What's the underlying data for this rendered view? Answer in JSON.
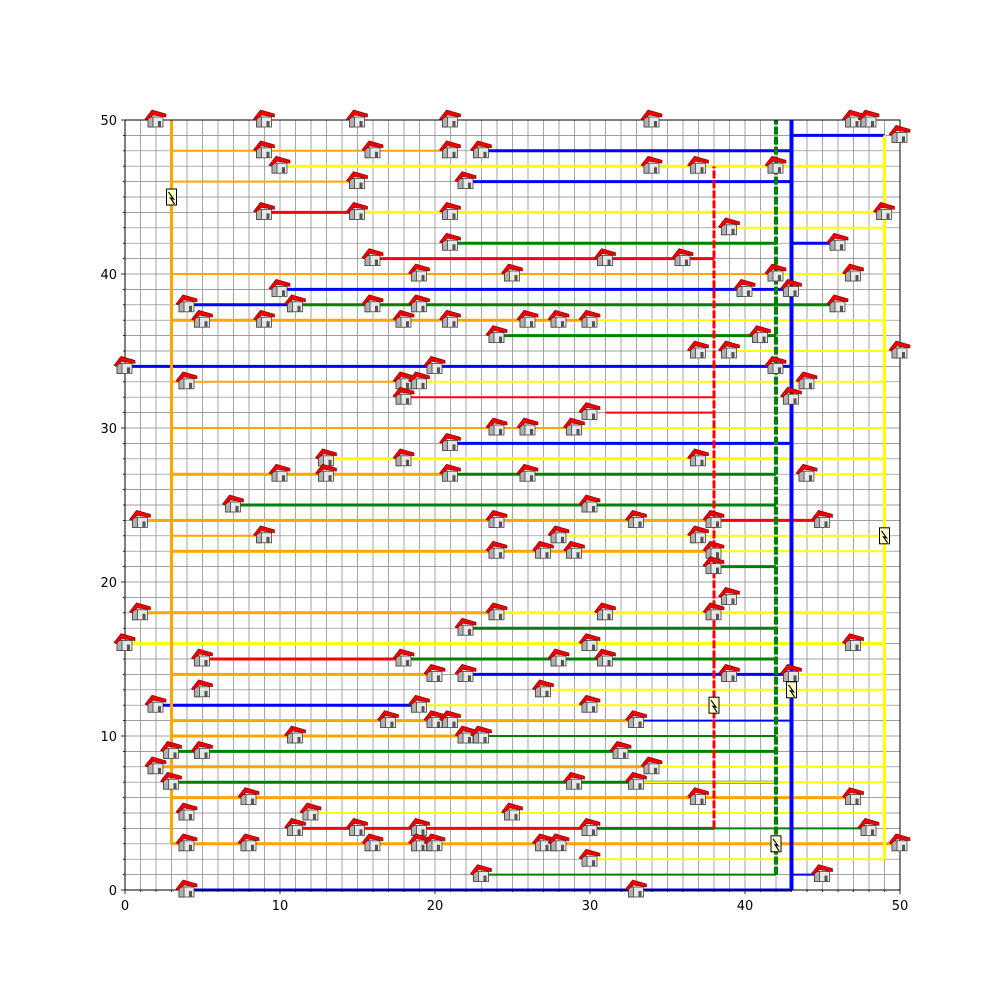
{
  "chart_data": {
    "type": "network",
    "xlim": [
      0,
      50
    ],
    "ylim": [
      0,
      50
    ],
    "grid": true,
    "minor_grid_step": 1,
    "x_ticks": [
      "0",
      "10",
      "20",
      "30",
      "40",
      "50"
    ],
    "y_ticks": [
      "0",
      "10",
      "20",
      "30",
      "40",
      "50"
    ],
    "colors": {
      "red": "#ff0000",
      "orange": "#ffa500",
      "yellow": "#ffff00",
      "green": "#008000",
      "blue": "#0000ff",
      "grid": "#808080"
    },
    "trunks": [
      {
        "color": "orange",
        "x": 3,
        "y1": 3,
        "y2": 50,
        "w": 3
      },
      {
        "color": "red",
        "x": 38,
        "y1": 4,
        "y2": 47,
        "w": 3,
        "dash": true
      },
      {
        "color": "green",
        "x": 42,
        "y1": 1,
        "y2": 50,
        "w": 4,
        "dash": true
      },
      {
        "color": "blue",
        "x": 43,
        "y1": 0,
        "y2": 50,
        "w": 4
      },
      {
        "color": "yellow",
        "x": 49,
        "y1": 2,
        "y2": 49,
        "w": 3
      }
    ],
    "lines": [
      {
        "color": "green",
        "x1": 3,
        "x2": 42,
        "y": 50,
        "w": 1
      },
      {
        "color": "blue",
        "x1": 43,
        "x2": 49,
        "y": 49,
        "w": 3
      },
      {
        "color": "orange",
        "x1": 3,
        "x2": 21,
        "y": 48,
        "w": 2
      },
      {
        "color": "blue",
        "x1": 23,
        "x2": 43,
        "y": 48,
        "w": 3
      },
      {
        "color": "yellow",
        "x1": 10,
        "x2": 49,
        "y": 47,
        "w": 3
      },
      {
        "color": "orange",
        "x1": 3,
        "x2": 15,
        "y": 46,
        "w": 2
      },
      {
        "color": "blue",
        "x1": 22,
        "x2": 43,
        "y": 46,
        "w": 3
      },
      {
        "color": "red",
        "x1": 9,
        "x2": 15,
        "y": 44,
        "w": 3
      },
      {
        "color": "yellow",
        "x1": 15,
        "x2": 49,
        "y": 44,
        "w": 3
      },
      {
        "color": "yellow",
        "x1": 39,
        "x2": 49,
        "y": 43,
        "w": 2
      },
      {
        "color": "green",
        "x1": 21,
        "x2": 42,
        "y": 42,
        "w": 3
      },
      {
        "color": "blue",
        "x1": 43,
        "x2": 46,
        "y": 42,
        "w": 3
      },
      {
        "color": "red",
        "x1": 16,
        "x2": 38,
        "y": 41,
        "w": 3
      },
      {
        "color": "orange",
        "x1": 3,
        "x2": 42,
        "y": 40,
        "w": 2
      },
      {
        "color": "yellow",
        "x1": 42,
        "x2": 47,
        "y": 40,
        "w": 2
      },
      {
        "color": "blue",
        "x1": 10,
        "x2": 43,
        "y": 39,
        "w": 3
      },
      {
        "color": "blue",
        "x1": 4,
        "x2": 11,
        "y": 38,
        "w": 3
      },
      {
        "color": "green",
        "x1": 11,
        "x2": 46,
        "y": 38,
        "w": 3
      },
      {
        "color": "orange",
        "x1": 3,
        "x2": 30,
        "y": 37,
        "w": 3
      },
      {
        "color": "yellow",
        "x1": 30,
        "x2": 49,
        "y": 37,
        "w": 2
      },
      {
        "color": "green",
        "x1": 24,
        "x2": 42,
        "y": 36,
        "w": 3
      },
      {
        "color": "yellow",
        "x1": 39,
        "x2": 50,
        "y": 35,
        "w": 2
      },
      {
        "color": "blue",
        "x1": 0,
        "x2": 43,
        "y": 34,
        "w": 3
      },
      {
        "color": "orange",
        "x1": 3,
        "x2": 19,
        "y": 33,
        "w": 2
      },
      {
        "color": "yellow",
        "x1": 19,
        "x2": 49,
        "y": 33,
        "w": 2
      },
      {
        "color": "red",
        "x1": 18,
        "x2": 38,
        "y": 32,
        "w": 2
      },
      {
        "color": "red",
        "x1": 31,
        "x2": 38,
        "y": 31,
        "w": 2
      },
      {
        "color": "orange",
        "x1": 3,
        "x2": 29,
        "y": 30,
        "w": 2
      },
      {
        "color": "yellow",
        "x1": 29,
        "x2": 49,
        "y": 30,
        "w": 2
      },
      {
        "color": "blue",
        "x1": 21,
        "x2": 43,
        "y": 29,
        "w": 3
      },
      {
        "color": "yellow",
        "x1": 13,
        "x2": 49,
        "y": 28,
        "w": 3
      },
      {
        "color": "orange",
        "x1": 3,
        "x2": 21,
        "y": 27,
        "w": 3
      },
      {
        "color": "green",
        "x1": 21,
        "x2": 42,
        "y": 27,
        "w": 3
      },
      {
        "color": "yellow",
        "x1": 44,
        "x2": 49,
        "y": 27,
        "w": 2
      },
      {
        "color": "green",
        "x1": 7,
        "x2": 42,
        "y": 25,
        "w": 3
      },
      {
        "color": "orange",
        "x1": 1,
        "x2": 38,
        "y": 24,
        "w": 3
      },
      {
        "color": "red",
        "x1": 38,
        "x2": 45,
        "y": 24,
        "w": 3
      },
      {
        "color": "orange",
        "x1": 3,
        "x2": 9,
        "y": 23,
        "w": 2
      },
      {
        "color": "yellow",
        "x1": 28,
        "x2": 49,
        "y": 23,
        "w": 2
      },
      {
        "color": "orange",
        "x1": 3,
        "x2": 38,
        "y": 22,
        "w": 3
      },
      {
        "color": "yellow",
        "x1": 38,
        "x2": 49,
        "y": 22,
        "w": 2
      },
      {
        "color": "green",
        "x1": 38,
        "x2": 42,
        "y": 21,
        "w": 3
      },
      {
        "color": "orange",
        "x1": 1,
        "x2": 24,
        "y": 18,
        "w": 3
      },
      {
        "color": "yellow",
        "x1": 24,
        "x2": 49,
        "y": 18,
        "w": 3
      },
      {
        "color": "green",
        "x1": 22,
        "x2": 42,
        "y": 17,
        "w": 3
      },
      {
        "color": "yellow",
        "x1": 0,
        "x2": 49,
        "y": 16,
        "w": 3
      },
      {
        "color": "red",
        "x1": 5,
        "x2": 18,
        "y": 15,
        "w": 3
      },
      {
        "color": "green",
        "x1": 18,
        "x2": 42,
        "y": 15,
        "w": 3
      },
      {
        "color": "orange",
        "x1": 3,
        "x2": 20,
        "y": 14,
        "w": 3
      },
      {
        "color": "blue",
        "x1": 22,
        "x2": 43,
        "y": 14,
        "w": 3
      },
      {
        "color": "yellow",
        "x1": 43,
        "x2": 49,
        "y": 14,
        "w": 2
      },
      {
        "color": "yellow",
        "x1": 27,
        "x2": 49,
        "y": 13,
        "w": 2
      },
      {
        "color": "blue",
        "x1": 2,
        "x2": 19,
        "y": 12,
        "w": 3
      },
      {
        "color": "yellow",
        "x1": 19,
        "x2": 49,
        "y": 12,
        "w": 2
      },
      {
        "color": "orange",
        "x1": 3,
        "x2": 33,
        "y": 11,
        "w": 3
      },
      {
        "color": "blue",
        "x1": 33,
        "x2": 43,
        "y": 11,
        "w": 2
      },
      {
        "color": "orange",
        "x1": 3,
        "x2": 23,
        "y": 10,
        "w": 3
      },
      {
        "color": "green",
        "x1": 23,
        "x2": 42,
        "y": 10,
        "w": 2
      },
      {
        "color": "green",
        "x1": 3,
        "x2": 42,
        "y": 9,
        "w": 3
      },
      {
        "color": "orange",
        "x1": 2,
        "x2": 34,
        "y": 8,
        "w": 3
      },
      {
        "color": "yellow",
        "x1": 34,
        "x2": 49,
        "y": 8,
        "w": 2
      },
      {
        "color": "green",
        "x1": 3,
        "x2": 42,
        "y": 7,
        "w": 3
      },
      {
        "color": "yellow",
        "x1": 33,
        "x2": 49,
        "y": 7,
        "w": 2
      },
      {
        "color": "orange",
        "x1": 3,
        "x2": 47,
        "y": 6,
        "w": 3
      },
      {
        "color": "yellow",
        "x1": 12,
        "x2": 49,
        "y": 5,
        "w": 2
      },
      {
        "color": "red",
        "x1": 11,
        "x2": 38,
        "y": 4,
        "w": 3
      },
      {
        "color": "green",
        "x1": 30,
        "x2": 48,
        "y": 4,
        "w": 2
      },
      {
        "color": "orange",
        "x1": 3,
        "x2": 50,
        "y": 3,
        "w": 3
      },
      {
        "color": "yellow",
        "x1": 30,
        "x2": 49,
        "y": 2,
        "w": 2
      },
      {
        "color": "green",
        "x1": 23,
        "x2": 42,
        "y": 1,
        "w": 2
      },
      {
        "color": "blue",
        "x1": 43,
        "x2": 45,
        "y": 1,
        "w": 2
      },
      {
        "color": "blue",
        "x1": 4,
        "x2": 43,
        "y": 0,
        "w": 3
      }
    ],
    "houses": [
      [
        2,
        50
      ],
      [
        9,
        50
      ],
      [
        15,
        50
      ],
      [
        21,
        50
      ],
      [
        34,
        50
      ],
      [
        47,
        50
      ],
      [
        48,
        50
      ],
      [
        50,
        49
      ],
      [
        9,
        48
      ],
      [
        16,
        48
      ],
      [
        21,
        48
      ],
      [
        23,
        48
      ],
      [
        10,
        47
      ],
      [
        34,
        47
      ],
      [
        37,
        47
      ],
      [
        42,
        47
      ],
      [
        15,
        46
      ],
      [
        22,
        46
      ],
      [
        9,
        44
      ],
      [
        15,
        44
      ],
      [
        21,
        44
      ],
      [
        49,
        44
      ],
      [
        39,
        43
      ],
      [
        21,
        42
      ],
      [
        46,
        42
      ],
      [
        16,
        41
      ],
      [
        31,
        41
      ],
      [
        36,
        41
      ],
      [
        19,
        40
      ],
      [
        25,
        40
      ],
      [
        42,
        40
      ],
      [
        47,
        40
      ],
      [
        10,
        39
      ],
      [
        40,
        39
      ],
      [
        43,
        39
      ],
      [
        4,
        38
      ],
      [
        11,
        38
      ],
      [
        16,
        38
      ],
      [
        19,
        38
      ],
      [
        46,
        38
      ],
      [
        5,
        37
      ],
      [
        9,
        37
      ],
      [
        18,
        37
      ],
      [
        21,
        37
      ],
      [
        26,
        37
      ],
      [
        28,
        37
      ],
      [
        30,
        37
      ],
      [
        24,
        36
      ],
      [
        41,
        36
      ],
      [
        37,
        35
      ],
      [
        39,
        35
      ],
      [
        50,
        35
      ],
      [
        0,
        34
      ],
      [
        20,
        34
      ],
      [
        42,
        34
      ],
      [
        4,
        33
      ],
      [
        18,
        33
      ],
      [
        19,
        33
      ],
      [
        44,
        33
      ],
      [
        18,
        32
      ],
      [
        43,
        32
      ],
      [
        30,
        31
      ],
      [
        24,
        30
      ],
      [
        26,
        30
      ],
      [
        29,
        30
      ],
      [
        21,
        29
      ],
      [
        13,
        28
      ],
      [
        18,
        28
      ],
      [
        37,
        28
      ],
      [
        10,
        27
      ],
      [
        13,
        27
      ],
      [
        21,
        27
      ],
      [
        26,
        27
      ],
      [
        44,
        27
      ],
      [
        7,
        25
      ],
      [
        30,
        25
      ],
      [
        1,
        24
      ],
      [
        24,
        24
      ],
      [
        33,
        24
      ],
      [
        38,
        24
      ],
      [
        45,
        24
      ],
      [
        9,
        23
      ],
      [
        28,
        23
      ],
      [
        37,
        23
      ],
      [
        24,
        22
      ],
      [
        27,
        22
      ],
      [
        29,
        22
      ],
      [
        38,
        22
      ],
      [
        38,
        21
      ],
      [
        39,
        19
      ],
      [
        1,
        18
      ],
      [
        24,
        18
      ],
      [
        31,
        18
      ],
      [
        38,
        18
      ],
      [
        22,
        17
      ],
      [
        0,
        16
      ],
      [
        30,
        16
      ],
      [
        47,
        16
      ],
      [
        5,
        15
      ],
      [
        18,
        15
      ],
      [
        28,
        15
      ],
      [
        31,
        15
      ],
      [
        20,
        14
      ],
      [
        22,
        14
      ],
      [
        39,
        14
      ],
      [
        43,
        14
      ],
      [
        5,
        13
      ],
      [
        27,
        13
      ],
      [
        2,
        12
      ],
      [
        19,
        12
      ],
      [
        30,
        12
      ],
      [
        17,
        11
      ],
      [
        20,
        11
      ],
      [
        21,
        11
      ],
      [
        33,
        11
      ],
      [
        11,
        10
      ],
      [
        22,
        10
      ],
      [
        23,
        10
      ],
      [
        3,
        9
      ],
      [
        5,
        9
      ],
      [
        32,
        9
      ],
      [
        2,
        8
      ],
      [
        34,
        8
      ],
      [
        3,
        7
      ],
      [
        29,
        7
      ],
      [
        33,
        7
      ],
      [
        8,
        6
      ],
      [
        37,
        6
      ],
      [
        47,
        6
      ],
      [
        4,
        5
      ],
      [
        12,
        5
      ],
      [
        25,
        5
      ],
      [
        11,
        4
      ],
      [
        15,
        4
      ],
      [
        19,
        4
      ],
      [
        30,
        4
      ],
      [
        48,
        4
      ],
      [
        4,
        3
      ],
      [
        8,
        3
      ],
      [
        16,
        3
      ],
      [
        19,
        3
      ],
      [
        20,
        3
      ],
      [
        27,
        3
      ],
      [
        28,
        3
      ],
      [
        50,
        3
      ],
      [
        30,
        2
      ],
      [
        23,
        1
      ],
      [
        45,
        1
      ],
      [
        4,
        0
      ],
      [
        33,
        0
      ]
    ],
    "stations": [
      [
        3,
        45
      ],
      [
        49,
        23
      ],
      [
        43,
        13
      ],
      [
        38,
        12
      ],
      [
        42,
        3
      ]
    ]
  }
}
